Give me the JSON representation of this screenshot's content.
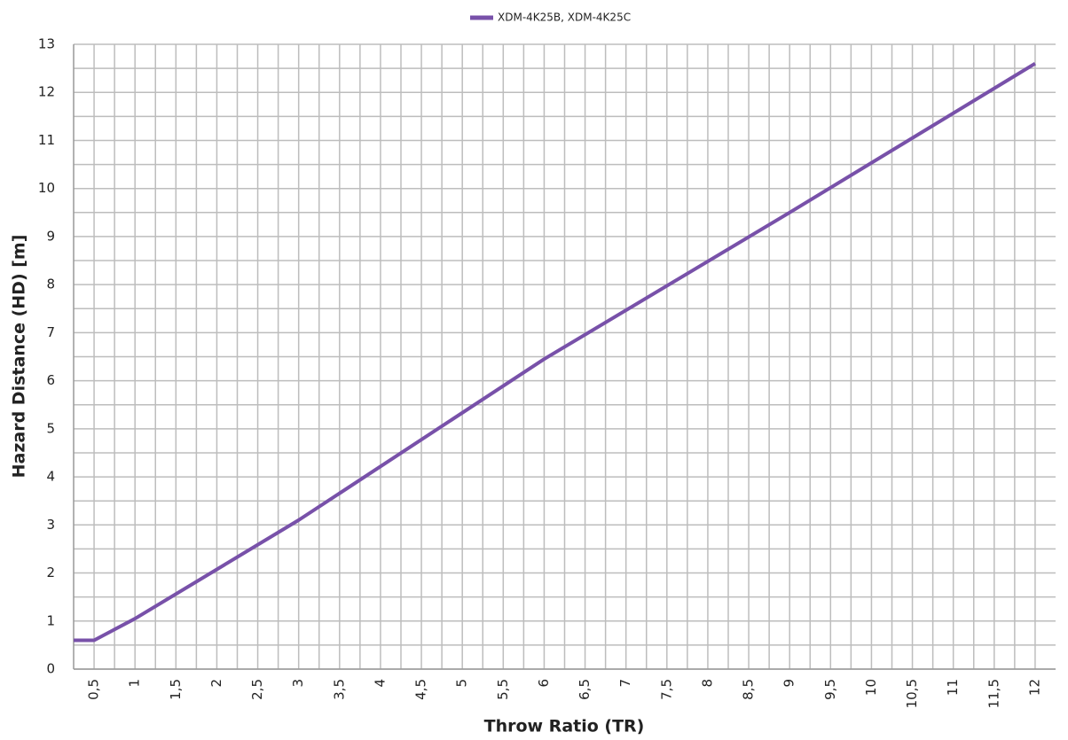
{
  "chart_data": {
    "type": "line",
    "x_label": "Throw Ratio (TR)",
    "y_label": "Hazard Distance (HD) [m]",
    "x": [
      0.25,
      0.5,
      1,
      3,
      6,
      9,
      12
    ],
    "series": [
      {
        "name": "XDM-4K25B, XDM-4K25C",
        "color": "#7851a9",
        "values": [
          0.6,
          0.6,
          1.05,
          3.1,
          6.45,
          9.5,
          12.6
        ]
      }
    ],
    "xlim": [
      0.25,
      12.25
    ],
    "ylim": [
      0,
      13
    ],
    "xticks": [
      {
        "value": 0.5,
        "label": "0,5"
      },
      1,
      {
        "value": 1.5,
        "label": "1,5"
      },
      2,
      {
        "value": 2.5,
        "label": "2,5"
      },
      3,
      {
        "value": 3.5,
        "label": "3,5"
      },
      4,
      {
        "value": 4.5,
        "label": "4,5"
      },
      5,
      {
        "value": 5.5,
        "label": "5,5"
      },
      6,
      {
        "value": 6.5,
        "label": "6,5"
      },
      7,
      {
        "value": 7.5,
        "label": "7,5"
      },
      8,
      {
        "value": 8.5,
        "label": "8,5"
      },
      9,
      {
        "value": 9.5,
        "label": "9,5"
      },
      10,
      {
        "value": 10.5,
        "label": "10,5"
      },
      11,
      {
        "value": 11.5,
        "label": "11,5"
      },
      12
    ],
    "yticks": [
      0,
      1,
      2,
      3,
      4,
      5,
      6,
      7,
      8,
      9,
      10,
      11,
      12,
      13
    ],
    "grid": true,
    "legend": "top"
  }
}
